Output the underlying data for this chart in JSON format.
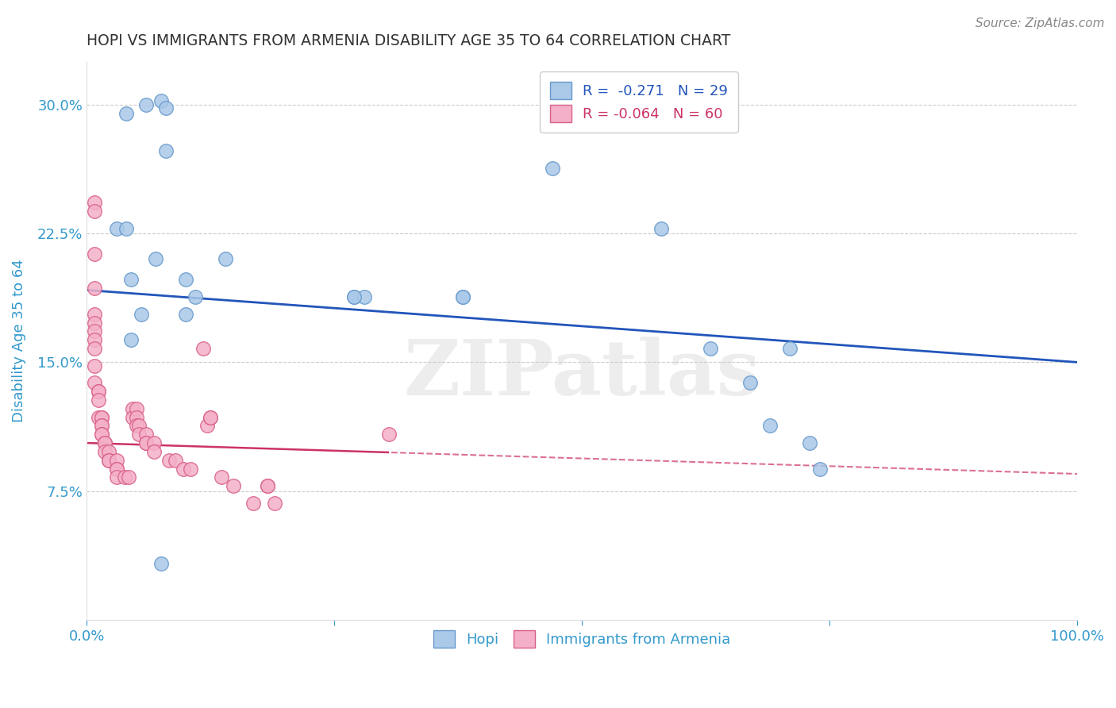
{
  "title": "HOPI VS IMMIGRANTS FROM ARMENIA DISABILITY AGE 35 TO 64 CORRELATION CHART",
  "source": "Source: ZipAtlas.com",
  "ylabel": "Disability Age 35 to 64",
  "xlabel": "",
  "watermark": "ZIPatlas",
  "legend_blue_r": "-0.271",
  "legend_blue_n": "29",
  "legend_pink_r": "-0.064",
  "legend_pink_n": "60",
  "xlim": [
    0.0,
    1.0
  ],
  "ylim": [
    0.0,
    0.325
  ],
  "yticks": [
    0.075,
    0.15,
    0.225,
    0.3
  ],
  "ytick_labels": [
    "7.5%",
    "15.0%",
    "22.5%",
    "30.0%"
  ],
  "xticks": [
    0.0,
    0.25,
    0.5,
    0.75,
    1.0
  ],
  "xtick_labels": [
    "0.0%",
    "",
    "",
    "",
    "100.0%"
  ],
  "blue_scatter_x": [
    0.04,
    0.06,
    0.075,
    0.08,
    0.08,
    0.03,
    0.04,
    0.07,
    0.14,
    0.27,
    0.28,
    0.38,
    0.47,
    0.58,
    0.63,
    0.67,
    0.69,
    0.71,
    0.73,
    0.74,
    0.11,
    0.045,
    0.055,
    0.045,
    0.1,
    0.1,
    0.27,
    0.38,
    0.075
  ],
  "blue_scatter_y": [
    0.295,
    0.3,
    0.302,
    0.298,
    0.273,
    0.228,
    0.228,
    0.21,
    0.21,
    0.188,
    0.188,
    0.188,
    0.263,
    0.228,
    0.158,
    0.138,
    0.113,
    0.158,
    0.103,
    0.088,
    0.188,
    0.198,
    0.178,
    0.163,
    0.178,
    0.198,
    0.188,
    0.188,
    0.033
  ],
  "pink_scatter_x": [
    0.008,
    0.008,
    0.008,
    0.008,
    0.008,
    0.008,
    0.008,
    0.008,
    0.008,
    0.008,
    0.008,
    0.012,
    0.012,
    0.012,
    0.012,
    0.015,
    0.015,
    0.015,
    0.015,
    0.015,
    0.015,
    0.018,
    0.018,
    0.018,
    0.022,
    0.022,
    0.022,
    0.03,
    0.03,
    0.03,
    0.03,
    0.038,
    0.042,
    0.046,
    0.046,
    0.05,
    0.05,
    0.05,
    0.053,
    0.053,
    0.06,
    0.06,
    0.06,
    0.068,
    0.068,
    0.083,
    0.09,
    0.098,
    0.105,
    0.118,
    0.122,
    0.125,
    0.125,
    0.136,
    0.148,
    0.168,
    0.183,
    0.183,
    0.19,
    0.305
  ],
  "pink_scatter_y": [
    0.243,
    0.238,
    0.213,
    0.193,
    0.178,
    0.173,
    0.168,
    0.163,
    0.158,
    0.148,
    0.138,
    0.133,
    0.133,
    0.128,
    0.118,
    0.118,
    0.118,
    0.113,
    0.113,
    0.108,
    0.108,
    0.103,
    0.103,
    0.098,
    0.098,
    0.093,
    0.093,
    0.093,
    0.088,
    0.088,
    0.083,
    0.083,
    0.083,
    0.123,
    0.118,
    0.123,
    0.118,
    0.113,
    0.113,
    0.108,
    0.108,
    0.103,
    0.103,
    0.103,
    0.098,
    0.093,
    0.093,
    0.088,
    0.088,
    0.158,
    0.113,
    0.118,
    0.118,
    0.083,
    0.078,
    0.068,
    0.078,
    0.078,
    0.068,
    0.108
  ],
  "blue_color": "#aac8e8",
  "blue_edge": "#6699cc",
  "pink_color": "#f4b0c8",
  "pink_edge": "#d96088",
  "blue_line_color": "#2255bb",
  "pink_line_color": "#cc3366",
  "background_color": "#ffffff",
  "grid_color": "#cccccc",
  "title_color": "#333333",
  "axis_label_color": "#3399cc",
  "tick_color": "#3399cc",
  "blue_line_intercept": 0.192,
  "blue_line_slope": -0.042,
  "pink_line_intercept": 0.103,
  "pink_line_slope": -0.018
}
